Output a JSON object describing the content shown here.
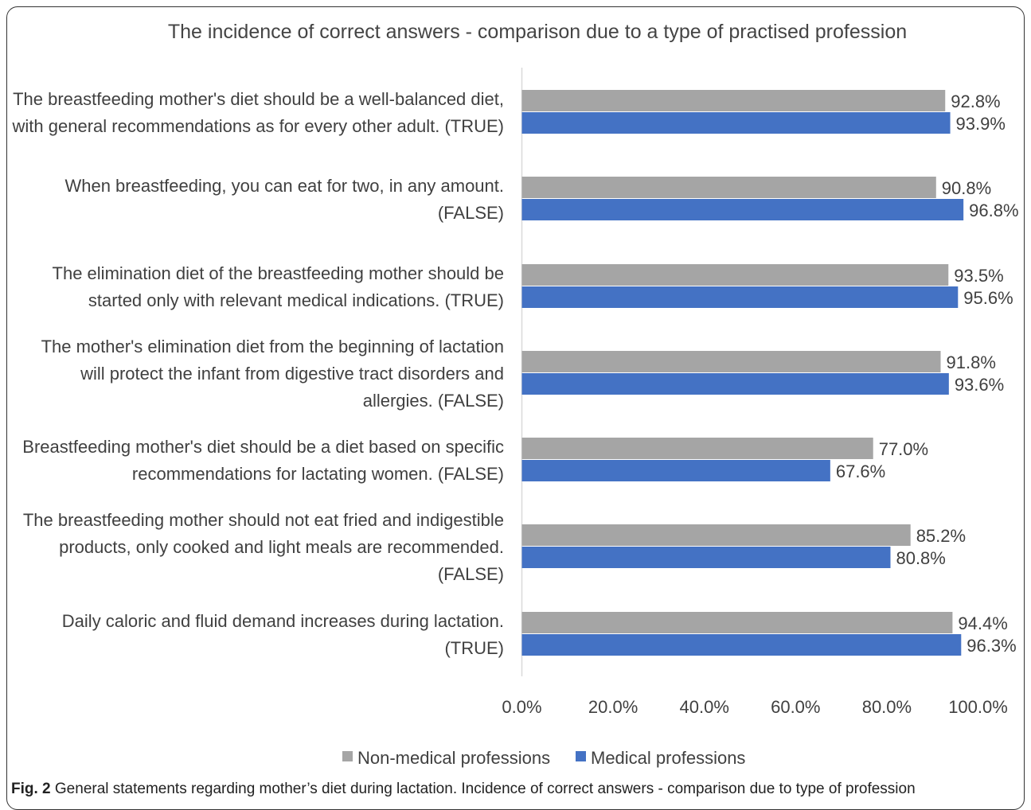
{
  "chart_data": {
    "type": "bar",
    "orientation": "horizontal",
    "title": "The incidence of correct answers - comparison due to a type of practised profession",
    "categories": [
      [
        "The breastfeeding mother's diet should be a well-balanced diet,",
        "with general recommendations as for every other adult. (TRUE)"
      ],
      [
        "When breastfeeding, you can eat for two, in any amount.",
        "(FALSE)"
      ],
      [
        "The elimination diet of the breastfeeding mother should be",
        "started only with relevant medical indications. (TRUE)"
      ],
      [
        "The mother's elimination diet from the beginning of lactation",
        "will protect the infant from digestive tract disorders and",
        "allergies. (FALSE)"
      ],
      [
        "Breastfeeding mother's diet should be a diet based on specific",
        "recommendations for lactating women. (FALSE)"
      ],
      [
        "The breastfeeding mother should not eat fried and indigestible",
        "products, only cooked and light meals are recommended.",
        "(FALSE)"
      ],
      [
        "Daily caloric and fluid demand increases during lactation.",
        "(TRUE)"
      ]
    ],
    "series": [
      {
        "name": "Non-medical professions",
        "color": "#a5a5a5",
        "values": [
          92.8,
          90.8,
          93.5,
          91.8,
          77.0,
          85.2,
          94.4
        ]
      },
      {
        "name": "Medical professions",
        "color": "#4472c4",
        "values": [
          93.9,
          96.8,
          95.6,
          93.6,
          67.6,
          80.8,
          96.3
        ]
      }
    ],
    "xlim": [
      0,
      100
    ],
    "xticks": [
      0,
      20,
      40,
      60,
      80,
      100
    ],
    "tick_format": "percent_1dp",
    "grid": false,
    "legend_position": "bottom"
  },
  "caption": {
    "label": "Fig. 2",
    "text": " General statements regarding mother’s diet during lactation. Incidence of correct answers - comparison due to type of profession"
  }
}
